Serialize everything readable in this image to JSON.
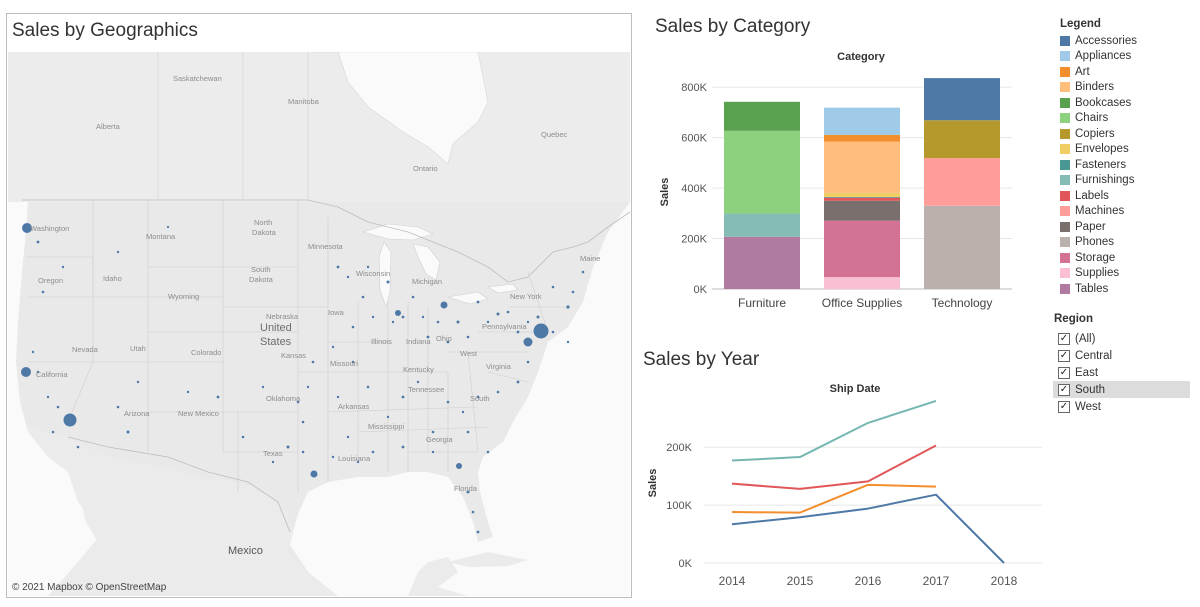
{
  "map": {
    "title": "Sales by Geographics",
    "credit": "© 2021 Mapbox © OpenStreetMap",
    "labels": {
      "saskatchewan": "Saskatchewan",
      "manitoba": "Manitoba",
      "alberta": "Alberta",
      "quebec": "Quebec",
      "ontario": "Ontario",
      "washington": "Washington",
      "montana": "Montana",
      "north_dakota_1": "North",
      "north_dakota_2": "Dakota",
      "minnesota": "Minnesota",
      "oregon": "Oregon",
      "idaho": "Idaho",
      "south_dakota_1": "South",
      "south_dakota_2": "Dakota",
      "wisconsin": "Wisconsin",
      "michigan": "Michigan",
      "new_york": "New York",
      "maine": "Maine",
      "wyoming": "Wyoming",
      "iowa": "Iowa",
      "pennsylvania": "Pennsylvania",
      "nebraska": "Nebraska",
      "nevada": "Nevada",
      "utah": "Utah",
      "colorado": "Colorado",
      "kansas": "Kansas",
      "illinois": "Illinois",
      "indiana": "Indiana",
      "ohio": "Ohio",
      "west": "West",
      "california": "California",
      "missouri": "Missouri",
      "kentucky": "Kentucky",
      "virginia": "Virginia",
      "tennessee": "Tennessee",
      "arizona": "Arizona",
      "new_mexico": "New Mexico",
      "oklahoma": "Oklahoma",
      "arkansas": "Arkansas",
      "south": "South",
      "mississippi": "Mississippi",
      "georgia": "Georgia",
      "texas": "Texas",
      "louisiana": "Louisiana",
      "florida": "Florida",
      "united_states_1": "United",
      "united_states_2": "States",
      "mexico": "Mexico"
    }
  },
  "category_chart": {
    "title": "Sales by Category",
    "header": "Category",
    "ylabel": "Sales",
    "yticks": [
      "0K",
      "200K",
      "400K",
      "600K",
      "800K"
    ],
    "categories": [
      "Furniture",
      "Office Supplies",
      "Technology"
    ]
  },
  "year_chart": {
    "title": "Sales by Year",
    "header": "Ship Date",
    "ylabel": "Sales",
    "yticks": [
      "0K",
      "100K",
      "200K"
    ],
    "xticks": [
      "2014",
      "2015",
      "2016",
      "2017",
      "2018"
    ]
  },
  "legend": {
    "title": "Legend",
    "items": [
      {
        "label": "Accessories",
        "color": "#4e79a7"
      },
      {
        "label": "Appliances",
        "color": "#a0cbe8"
      },
      {
        "label": "Art",
        "color": "#f28e2b"
      },
      {
        "label": "Binders",
        "color": "#ffbe7d"
      },
      {
        "label": "Bookcases",
        "color": "#59a14f"
      },
      {
        "label": "Chairs",
        "color": "#8cd17d"
      },
      {
        "label": "Copiers",
        "color": "#b6992d"
      },
      {
        "label": "Envelopes",
        "color": "#f1ce63"
      },
      {
        "label": "Fasteners",
        "color": "#499894"
      },
      {
        "label": "Furnishings",
        "color": "#86bcb6"
      },
      {
        "label": "Labels",
        "color": "#e15759"
      },
      {
        "label": "Machines",
        "color": "#ff9d9a"
      },
      {
        "label": "Paper",
        "color": "#79706e"
      },
      {
        "label": "Phones",
        "color": "#bab0ac"
      },
      {
        "label": "Storage",
        "color": "#d37295"
      },
      {
        "label": "Supplies",
        "color": "#fabfd2"
      },
      {
        "label": "Tables",
        "color": "#b07aa1"
      }
    ]
  },
  "region_filter": {
    "title": "Region",
    "check_glyph": "✓",
    "items": [
      {
        "label": "(All)",
        "checked": true
      },
      {
        "label": "Central",
        "checked": true
      },
      {
        "label": "East",
        "checked": true
      },
      {
        "label": "South",
        "checked": true,
        "highlighted": true
      },
      {
        "label": "West",
        "checked": true
      }
    ]
  },
  "chart_data": [
    {
      "type": "bar",
      "stacked": true,
      "title": "Sales by Category",
      "xlabel": "Category",
      "ylabel": "Sales",
      "ylim": [
        0,
        880000
      ],
      "categories": [
        "Furniture",
        "Office Supplies",
        "Technology"
      ],
      "series": [
        {
          "name": "Tables",
          "color": "#b07aa1",
          "values": [
            207000,
            0,
            0
          ]
        },
        {
          "name": "Furnishings",
          "color": "#86bcb6",
          "values": [
            92000,
            0,
            0
          ]
        },
        {
          "name": "Chairs",
          "color": "#8cd17d",
          "values": [
            328000,
            0,
            0
          ]
        },
        {
          "name": "Bookcases",
          "color": "#59a14f",
          "values": [
            115000,
            0,
            0
          ]
        },
        {
          "name": "Supplies",
          "color": "#fabfd2",
          "values": [
            0,
            47000,
            0
          ]
        },
        {
          "name": "Storage",
          "color": "#d37295",
          "values": [
            0,
            224000,
            0
          ]
        },
        {
          "name": "Paper",
          "color": "#79706e",
          "values": [
            0,
            79000,
            0
          ]
        },
        {
          "name": "Labels",
          "color": "#e15759",
          "values": [
            0,
            12000,
            0
          ]
        },
        {
          "name": "Fasteners",
          "color": "#499894",
          "values": [
            0,
            3000,
            0
          ]
        },
        {
          "name": "Envelopes",
          "color": "#f1ce63",
          "values": [
            0,
            16000,
            0
          ]
        },
        {
          "name": "Binders",
          "color": "#ffbe7d",
          "values": [
            0,
            203000,
            0
          ]
        },
        {
          "name": "Art",
          "color": "#f28e2b",
          "values": [
            0,
            27000,
            0
          ]
        },
        {
          "name": "Appliances",
          "color": "#a0cbe8",
          "values": [
            0,
            108000,
            0
          ]
        },
        {
          "name": "Phones",
          "color": "#bab0ac",
          "values": [
            0,
            0,
            330000
          ]
        },
        {
          "name": "Machines",
          "color": "#ff9d9a",
          "values": [
            0,
            0,
            189000
          ]
        },
        {
          "name": "Copiers",
          "color": "#b6992d",
          "values": [
            0,
            0,
            150000
          ]
        },
        {
          "name": "Accessories",
          "color": "#4e79a7",
          "values": [
            0,
            0,
            167000
          ]
        }
      ]
    },
    {
      "type": "line",
      "title": "Sales by Year",
      "xlabel": "Ship Date",
      "ylabel": "Sales",
      "ylim": [
        0,
        285000
      ],
      "x": [
        "2014",
        "2015",
        "2016",
        "2017",
        "2018"
      ],
      "series": [
        {
          "color": "#76b7b2",
          "values": [
            177000,
            183000,
            242000,
            280000,
            null
          ]
        },
        {
          "color": "#e15759",
          "values": [
            137000,
            128000,
            141000,
            203000,
            null
          ]
        },
        {
          "color": "#f28e2b",
          "values": [
            88000,
            87000,
            135000,
            132000,
            null
          ]
        },
        {
          "color": "#4e79a7",
          "values": [
            67000,
            79000,
            94000,
            118000,
            0
          ]
        }
      ]
    }
  ]
}
